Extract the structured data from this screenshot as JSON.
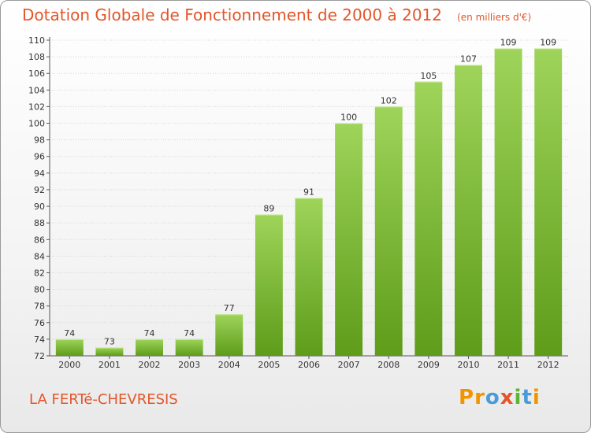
{
  "header": {
    "title": "Dotation Globale de Fonctionnement de 2000 à 2012",
    "unit": "(en milliers d'€)"
  },
  "footer": {
    "place": "LA FERTé-CHEVRESIS",
    "logo_letters": [
      "P",
      "r",
      "o",
      "x",
      "i",
      "t",
      "i"
    ]
  },
  "colors": {
    "title": "#e2562a",
    "bar_top": "#9ed45a",
    "bar_bottom": "#5e9c1a"
  },
  "chart_data": {
    "type": "bar",
    "title": "Dotation Globale de Fonctionnement de 2000 à 2012",
    "subtitle": "(en milliers d'€)",
    "categories": [
      "2000",
      "2001",
      "2002",
      "2003",
      "2004",
      "2005",
      "2006",
      "2007",
      "2008",
      "2009",
      "2010",
      "2011",
      "2012"
    ],
    "values": [
      74,
      73,
      74,
      74,
      77,
      89,
      91,
      100,
      102,
      105,
      107,
      109,
      109
    ],
    "ylim": [
      72,
      110
    ],
    "yticks": [
      72,
      74,
      76,
      78,
      80,
      82,
      84,
      86,
      88,
      90,
      92,
      94,
      96,
      98,
      100,
      102,
      104,
      106,
      108,
      110
    ],
    "grid": true,
    "xlabel": "",
    "ylabel": ""
  }
}
